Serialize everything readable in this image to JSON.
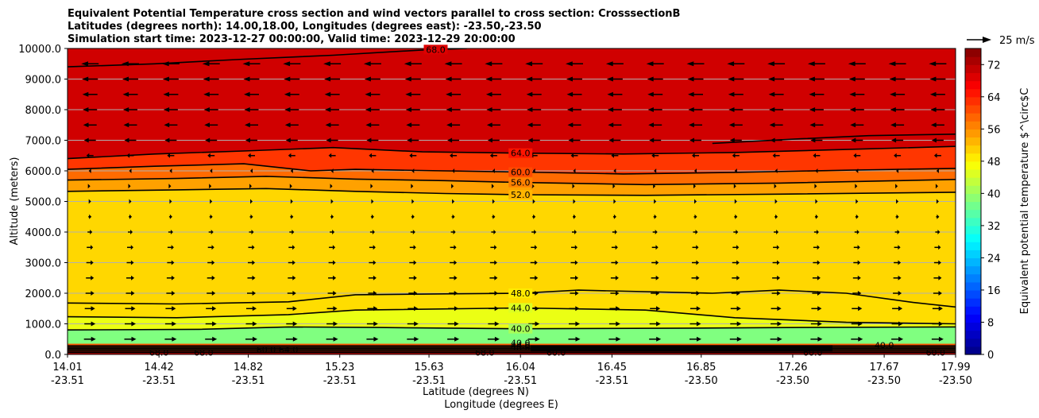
{
  "chart_data": {
    "type": "heatmap",
    "title_lines": [
      "Equivalent Potential Temperature cross section and wind vectors parallel to cross section: CrosssectionB",
      "Latitudes (degrees north): 14.00,18.00, Longitudes (degrees east): -23.50,-23.50",
      "Simulation start time: 2023-12-27 00:00:00, Valid time: 2023-12-29 20:00:00"
    ],
    "ylabel": "Altitude (meters)",
    "xlabel": "Latitude (degrees N)",
    "xlabel2": "Longitude (degrees E)",
    "ylim": [
      0,
      10000
    ],
    "yticks": [
      "0.0",
      "1000.0",
      "2000.0",
      "3000.0",
      "4000.0",
      "5000.0",
      "6000.0",
      "7000.0",
      "8000.0",
      "9000.0",
      "10000.0"
    ],
    "ytick_values": [
      0,
      1000,
      2000,
      3000,
      4000,
      5000,
      6000,
      7000,
      8000,
      9000,
      10000
    ],
    "xlim": [
      14.01,
      17.99
    ],
    "x_values": [
      14.01,
      14.42,
      14.82,
      15.23,
      15.63,
      16.04,
      16.45,
      16.85,
      17.26,
      17.67,
      17.99
    ],
    "xticks_lat": [
      "14.01",
      "14.42",
      "14.82",
      "15.23",
      "15.63",
      "16.04",
      "16.45",
      "16.85",
      "17.26",
      "17.67",
      "17.99"
    ],
    "xticks_lon": [
      "-23.51",
      "-23.51",
      "-23.51",
      "-23.51",
      "-23.51",
      "-23.51",
      "-23.51",
      "-23.50",
      "-23.50",
      "-23.50",
      "-23.50"
    ],
    "grid": "horizontal",
    "colorbar": {
      "label": "Equivalent potential temperature $^\\circ$C",
      "ticks": [
        "0",
        "8",
        "16",
        "24",
        "32",
        "40",
        "48",
        "56",
        "64",
        "72"
      ],
      "tick_values": [
        0,
        8,
        16,
        24,
        32,
        40,
        48,
        56,
        64,
        72
      ],
      "range": [
        0,
        76
      ],
      "colormap": "jet"
    },
    "quiver_key": {
      "label": "25 m/s",
      "speed": 25
    },
    "contours": [
      {
        "level": 40,
        "label": "40.0",
        "points": [
          [
            14.01,
            800
          ],
          [
            14.6,
            820
          ],
          [
            15.0,
            900
          ],
          [
            15.4,
            880
          ],
          [
            16.04,
            840
          ],
          [
            16.8,
            860
          ],
          [
            17.3,
            880
          ],
          [
            17.99,
            900
          ]
        ]
      },
      {
        "level": 44,
        "label": "44.0",
        "points": [
          [
            14.01,
            1230
          ],
          [
            14.5,
            1200
          ],
          [
            15.0,
            1300
          ],
          [
            15.3,
            1450
          ],
          [
            16.04,
            1520
          ],
          [
            16.6,
            1450
          ],
          [
            17.0,
            1200
          ],
          [
            17.5,
            1050
          ],
          [
            17.99,
            1000
          ]
        ]
      },
      {
        "level": 48,
        "label": "48.0",
        "points": [
          [
            14.01,
            1680
          ],
          [
            14.5,
            1650
          ],
          [
            15.0,
            1720
          ],
          [
            15.3,
            1950
          ],
          [
            15.7,
            1980
          ],
          [
            16.04,
            2000
          ],
          [
            16.3,
            2100
          ],
          [
            16.9,
            2000
          ],
          [
            17.2,
            2100
          ],
          [
            17.5,
            2000
          ],
          [
            17.8,
            1700
          ],
          [
            17.99,
            1550
          ]
        ]
      },
      {
        "level": 52,
        "label": "52.0",
        "points": [
          [
            14.01,
            5330
          ],
          [
            14.5,
            5380
          ],
          [
            14.9,
            5420
          ],
          [
            15.3,
            5330
          ],
          [
            15.7,
            5260
          ],
          [
            16.04,
            5220
          ],
          [
            16.6,
            5200
          ],
          [
            17.2,
            5240
          ],
          [
            17.99,
            5300
          ]
        ]
      },
      {
        "level": 56,
        "label": "56.0",
        "points": [
          [
            14.01,
            5700
          ],
          [
            14.5,
            5750
          ],
          [
            14.9,
            5820
          ],
          [
            15.3,
            5730
          ],
          [
            15.7,
            5680
          ],
          [
            16.04,
            5620
          ],
          [
            16.6,
            5550
          ],
          [
            17.2,
            5600
          ],
          [
            17.99,
            5720
          ]
        ]
      },
      {
        "level": 60,
        "label": "60.0",
        "points": [
          [
            14.01,
            6050
          ],
          [
            14.4,
            6150
          ],
          [
            14.8,
            6230
          ],
          [
            15.1,
            6000
          ],
          [
            15.3,
            6050
          ],
          [
            15.7,
            6000
          ],
          [
            16.04,
            5960
          ],
          [
            16.5,
            5900
          ],
          [
            17.0,
            5950
          ],
          [
            17.5,
            6020
          ],
          [
            17.99,
            6080
          ]
        ]
      },
      {
        "level": 64,
        "label": "64.0",
        "points": [
          [
            14.01,
            6400
          ],
          [
            14.4,
            6550
          ],
          [
            14.8,
            6650
          ],
          [
            15.2,
            6760
          ],
          [
            15.6,
            6620
          ],
          [
            16.04,
            6580
          ],
          [
            16.5,
            6550
          ],
          [
            17.0,
            6600
          ],
          [
            17.5,
            6700
          ],
          [
            17.99,
            6800
          ]
        ]
      },
      {
        "level": 68,
        "label": "68.0",
        "points": [
          [
            14.01,
            9400
          ],
          [
            14.4,
            9500
          ],
          [
            14.8,
            9650
          ],
          [
            15.2,
            9780
          ],
          [
            15.6,
            9950
          ],
          [
            15.8,
            10000
          ]
        ]
      },
      {
        "level": 68,
        "label": "",
        "points": [
          [
            16.9,
            6900
          ],
          [
            17.3,
            7050
          ],
          [
            17.6,
            7150
          ],
          [
            17.99,
            7200
          ]
        ]
      }
    ],
    "surface_labels": [
      "68.0",
      "68.0",
      "60.0",
      "64.0",
      "68.0",
      "60.0",
      "40.0",
      "44.0",
      "48.0",
      "60.0",
      "60.0",
      "40.0"
    ],
    "wind_rows": [
      {
        "z": 9500,
        "u": -22
      },
      {
        "z": 9000,
        "u": -20
      },
      {
        "z": 8500,
        "u": -19
      },
      {
        "z": 8000,
        "u": -18
      },
      {
        "z": 7500,
        "u": -17
      },
      {
        "z": 7000,
        "u": -15
      },
      {
        "z": 6500,
        "u": -9
      },
      {
        "z": 6000,
        "u": -3
      },
      {
        "z": 5500,
        "u": 1
      },
      {
        "z": 5000,
        "u": 3
      },
      {
        "z": 4500,
        "u": 4
      },
      {
        "z": 4000,
        "u": 6
      },
      {
        "z": 3500,
        "u": 8
      },
      {
        "z": 3000,
        "u": 9
      },
      {
        "z": 2500,
        "u": 10
      },
      {
        "z": 2000,
        "u": 11
      },
      {
        "z": 1500,
        "u": 13
      },
      {
        "z": 1000,
        "u": 14
      },
      {
        "z": 500,
        "u": 15
      }
    ]
  }
}
